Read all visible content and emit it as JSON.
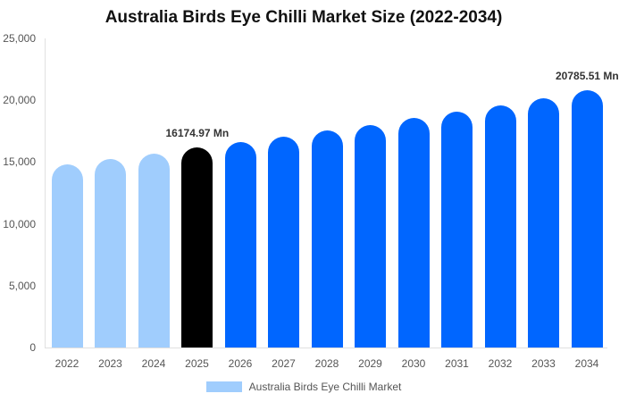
{
  "chart_data": {
    "type": "bar",
    "title": "Australia Birds Eye Chilli Market Size (2022-2034)",
    "xlabel": "",
    "ylabel": "",
    "ylim": [
      0,
      25000
    ],
    "yticks": [
      "0",
      "5,000",
      "10,000",
      "15,000",
      "20,000",
      "25,000"
    ],
    "categories": [
      "2022",
      "2023",
      "2024",
      "2025",
      "2026",
      "2027",
      "2028",
      "2029",
      "2030",
      "2031",
      "2032",
      "2033",
      "2034"
    ],
    "series": [
      {
        "name": "Australia Birds Eye Chilli Market",
        "values": [
          14800,
          15250,
          15700,
          16174.97,
          16600,
          17050,
          17550,
          18000,
          18550,
          19050,
          19600,
          20150,
          20785.51
        ]
      }
    ],
    "bar_colors": [
      "#a0cdfd",
      "#a0cdfd",
      "#a0cdfd",
      "#000000",
      "#0066ff",
      "#0066ff",
      "#0066ff",
      "#0066ff",
      "#0066ff",
      "#0066ff",
      "#0066ff",
      "#0066ff",
      "#0066ff"
    ],
    "annotations": [
      {
        "category": "2025",
        "text": "16174.97 Mn"
      },
      {
        "category": "2034",
        "text": "20785.51 Mn"
      }
    ],
    "grid": false,
    "legend_position": "bottom"
  },
  "legend": {
    "label": "Australia Birds Eye Chilli Market",
    "color": "#a0cdfd"
  }
}
